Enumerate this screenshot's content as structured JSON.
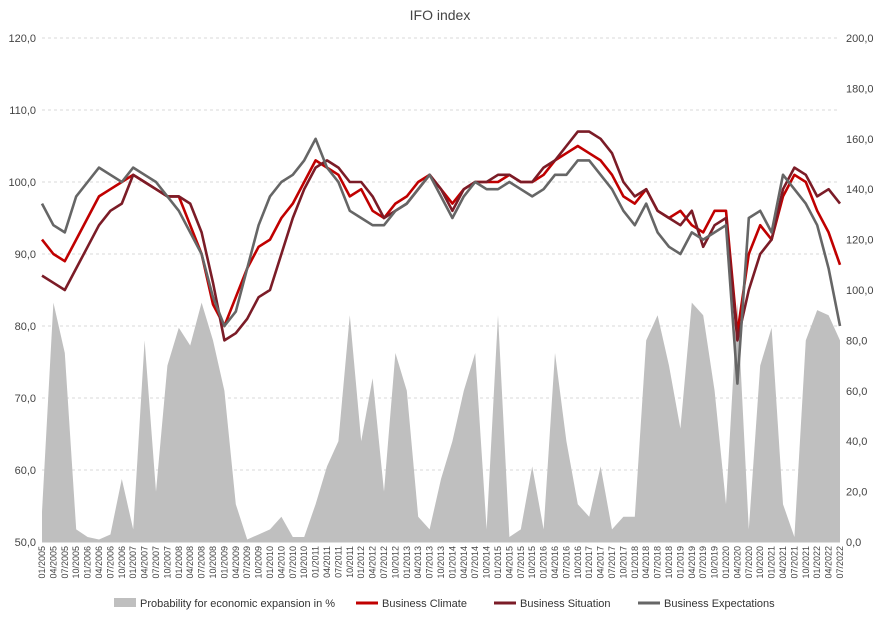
{
  "chart_data": {
    "type": "line",
    "title": "IFO index",
    "x": [
      "01/2005",
      "04/2005",
      "07/2005",
      "10/2005",
      "01/2006",
      "04/2006",
      "07/2006",
      "10/2006",
      "01/2007",
      "04/2007",
      "07/2007",
      "10/2007",
      "01/2008",
      "04/2008",
      "07/2008",
      "10/2008",
      "01/2009",
      "04/2009",
      "07/2009",
      "10/2009",
      "01/2010",
      "04/2010",
      "07/2010",
      "10/2010",
      "01/2011",
      "04/2011",
      "07/2011",
      "10/2011",
      "01/2012",
      "04/2012",
      "07/2012",
      "10/2012",
      "01/2013",
      "04/2013",
      "07/2013",
      "10/2013",
      "01/2014",
      "04/2014",
      "07/2014",
      "10/2014",
      "01/2015",
      "04/2015",
      "07/2015",
      "10/2015",
      "01/2016",
      "04/2016",
      "07/2016",
      "10/2016",
      "01/2017",
      "04/2017",
      "07/2017",
      "10/2017",
      "01/2018",
      "04/2018",
      "07/2018",
      "10/2018",
      "01/2019",
      "04/2019",
      "07/2019",
      "10/2019",
      "01/2020",
      "04/2020",
      "07/2020",
      "10/2020",
      "01/2021",
      "04/2021",
      "07/2021",
      "10/2021",
      "01/2022",
      "04/2022",
      "07/2022"
    ],
    "x_tick_labels": [
      "01/2005",
      "04/2005",
      "07/2005",
      "10/2005",
      "01/2006",
      "04/2006",
      "07/2006",
      "10/2006",
      "01/2007",
      "04/2007",
      "07/2007",
      "10/2007",
      "01/2008",
      "04/2008",
      "07/2008",
      "10/2008",
      "01/2009",
      "04/2009",
      "07/2009",
      "10/2009",
      "01/2010",
      "04/2010",
      "07/2010",
      "10/2010",
      "01/2011",
      "04/2011",
      "07/2011",
      "10/2011",
      "01/2012",
      "04/2012",
      "07/2012",
      "10/2012",
      "01/2013",
      "04/2013",
      "07/2013",
      "10/2013",
      "01/2014",
      "04/2014",
      "07/2014",
      "10/2014",
      "01/2015",
      "04/2015",
      "07/2015",
      "10/2015",
      "01/2016",
      "04/2016",
      "07/2016",
      "10/2016",
      "01/2017",
      "04/2017",
      "07/2017",
      "10/2017",
      "01/2018",
      "04/2018",
      "07/2018",
      "10/2018",
      "01/2019",
      "04/2019",
      "07/2019",
      "10/2019",
      "01/2020",
      "04/2020",
      "07/2020",
      "10/2020",
      "01/2021",
      "04/2021",
      "07/2021",
      "10/2021",
      "01/2022",
      "04/2022",
      "07/2022"
    ],
    "y_left": {
      "min": 50,
      "max": 120,
      "ticks": [
        "50,0",
        "60,0",
        "70,0",
        "80,0",
        "90,0",
        "100,0",
        "110,0",
        "120,0"
      ]
    },
    "y_right": {
      "min": 0,
      "max": 200,
      "ticks": [
        "0,0",
        "20,0",
        "40,0",
        "60,0",
        "80,0",
        "100,0",
        "120,0",
        "140,0",
        "160,0",
        "180,0",
        "200,0"
      ]
    },
    "grid": true,
    "legend_position": "bottom",
    "series": [
      {
        "name": "Probability for economic expansion in %",
        "kind": "area",
        "axis": "right",
        "color": "#bfbfbf",
        "values": [
          12,
          95,
          75,
          5,
          2,
          1,
          3,
          25,
          5,
          80,
          20,
          70,
          85,
          78,
          95,
          80,
          60,
          15,
          1,
          3,
          5,
          10,
          2,
          2,
          15,
          30,
          40,
          90,
          40,
          65,
          20,
          75,
          60,
          10,
          5,
          25,
          40,
          60,
          75,
          5,
          90,
          2,
          5,
          30,
          5,
          75,
          40,
          15,
          10,
          30,
          5,
          10,
          10,
          80,
          90,
          70,
          45,
          95,
          90,
          60,
          15,
          95,
          5,
          70,
          85,
          15,
          2,
          80,
          92,
          90,
          80
        ]
      },
      {
        "name": "Business Climate",
        "kind": "line",
        "axis": "left",
        "color": "#c00000",
        "values": [
          92,
          90,
          89,
          92,
          95,
          98,
          99,
          100,
          101,
          100,
          99,
          98,
          98,
          94,
          90,
          83,
          80,
          84,
          88,
          91,
          92,
          95,
          97,
          100,
          103,
          102,
          101,
          98,
          99,
          96,
          95,
          97,
          98,
          100,
          101,
          99,
          97,
          99,
          100,
          100,
          100,
          101,
          100,
          100,
          101,
          103,
          104,
          105,
          104,
          103,
          101,
          98,
          97,
          99,
          96,
          95,
          96,
          94,
          93,
          96,
          96,
          79,
          90,
          94,
          92,
          98,
          101,
          100,
          96,
          93,
          88.5
        ]
      },
      {
        "name": "Business Situation",
        "kind": "line",
        "axis": "left",
        "color": "#7b1c27",
        "values": [
          87,
          86,
          85,
          88,
          91,
          94,
          96,
          97,
          101,
          100,
          99,
          98,
          98,
          97,
          93,
          86,
          78,
          79,
          81,
          84,
          85,
          90,
          95,
          99,
          102,
          103,
          102,
          100,
          100,
          98,
          95,
          96,
          97,
          99,
          101,
          99,
          96,
          99,
          100,
          100,
          101,
          101,
          100,
          100,
          102,
          103,
          105,
          107,
          107,
          106,
          104,
          100,
          98,
          99,
          96,
          95,
          94,
          96,
          91,
          94,
          95,
          78,
          85,
          90,
          92,
          99,
          102,
          101,
          98,
          99,
          97
        ]
      },
      {
        "name": "Business Expectations",
        "kind": "line",
        "axis": "left",
        "color": "#666666",
        "values": [
          97,
          94,
          93,
          98,
          100,
          102,
          101,
          100,
          102,
          101,
          100,
          98,
          96,
          93,
          90,
          84,
          80,
          82,
          88,
          94,
          98,
          100,
          101,
          103,
          106,
          102,
          100,
          96,
          95,
          94,
          94,
          96,
          97,
          99,
          101,
          98,
          95,
          98,
          100,
          99,
          99,
          100,
          99,
          98,
          99,
          101,
          101,
          103,
          103,
          101,
          99,
          96,
          94,
          97,
          93,
          91,
          90,
          93,
          92,
          93,
          94,
          72,
          95,
          96,
          93,
          101,
          99,
          97,
          94,
          88,
          80
        ]
      }
    ]
  }
}
